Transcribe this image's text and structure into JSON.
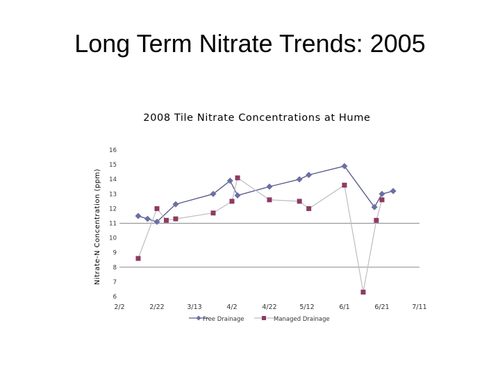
{
  "slide": {
    "title": "Long Term Nitrate Trends: 2005"
  },
  "chart_data": {
    "type": "line",
    "title": "2008 Tile Nitrate Concentrations at Hume",
    "xlabel": "",
    "ylabel": "Nitrate-N Concentration (ppm)",
    "ylim": [
      6,
      16
    ],
    "yticks": [
      6,
      7,
      8,
      9,
      10,
      11,
      12,
      13,
      14,
      15,
      16
    ],
    "xticks": [
      "2/2",
      "2/22",
      "3/13",
      "4/2",
      "4/22",
      "5/12",
      "6/1",
      "6/21",
      "7/11"
    ],
    "gridlines_y": [
      8,
      11
    ],
    "legend_position": "bottom",
    "series": [
      {
        "name": "Free Drainage",
        "color": "#6b6fa3",
        "marker": "diamond",
        "x": [
          "2/12",
          "2/17",
          "2/22",
          "3/3",
          "3/23",
          "4/1",
          "4/5",
          "4/22",
          "5/8",
          "5/13",
          "6/1",
          "6/17",
          "6/21",
          "6/27"
        ],
        "values": [
          11.5,
          11.3,
          11.1,
          12.3,
          13.0,
          13.9,
          12.9,
          13.5,
          14.0,
          14.3,
          14.9,
          12.1,
          13.0,
          13.2
        ]
      },
      {
        "name": "Managed Drainage",
        "color": "#8e3a63",
        "marker": "square",
        "x": [
          "2/12",
          "2/22",
          "2/27",
          "3/3",
          "3/23",
          "4/2",
          "4/5",
          "4/22",
          "5/8",
          "5/13",
          "6/1",
          "6/11",
          "6/18",
          "6/21"
        ],
        "values": [
          8.6,
          12.0,
          11.2,
          11.3,
          11.7,
          12.5,
          14.1,
          12.6,
          12.5,
          12.0,
          13.6,
          6.3,
          11.2,
          12.6
        ]
      }
    ]
  }
}
